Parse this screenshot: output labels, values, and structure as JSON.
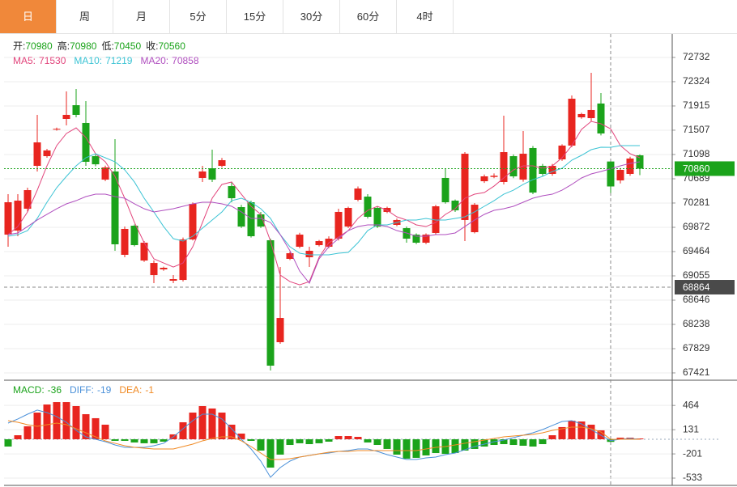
{
  "tabs": [
    "日",
    "周",
    "月",
    "5分",
    "15分",
    "30分",
    "60分",
    "4时"
  ],
  "active_tab": 0,
  "chart_data": [
    {
      "type": "candlestick",
      "info": [
        {
          "label": "开:",
          "value": 70980
        },
        {
          "label": "高:",
          "value": 70980
        },
        {
          "label": "低:",
          "value": 70450
        },
        {
          "label": "收:",
          "value": 70560
        }
      ],
      "up_color": "#e8251f",
      "down_color": "#1ba31b",
      "open": [
        69749,
        69817,
        70185,
        70907,
        71070,
        71520,
        71697,
        71928,
        71629,
        71070,
        70675,
        70812,
        69409,
        69899,
        69313,
        69068,
        69164,
        68973,
        68986,
        69668,
        70703,
        70866,
        70907,
        70566,
        70212,
        70294,
        70090,
        69654,
        67938,
        69341,
        69545,
        69368,
        69572,
        69545,
        69681,
        69885,
        70335,
        70389,
        70199,
        70131,
        69913,
        69858,
        69749,
        69613,
        69777,
        70703,
        70321,
        69995,
        69790,
        70648,
        70720,
        70635,
        71070,
        70675,
        71207,
        70907,
        70771,
        71016,
        71248,
        71724,
        71710,
        71956,
        70980,
        70662,
        70771,
        71084
      ],
      "high": [
        70430,
        70430,
        70539,
        71765,
        71193,
        71550,
        72160,
        72201,
        71997,
        71100,
        70910,
        71356,
        69885,
        69920,
        69640,
        69313,
        69210,
        69068,
        69700,
        70290,
        70907,
        71179,
        71040,
        70635,
        70250,
        70320,
        70130,
        69681,
        69204,
        69460,
        69780,
        69545,
        69660,
        69720,
        70185,
        70220,
        70560,
        70430,
        70220,
        70220,
        70020,
        69885,
        69770,
        69770,
        70250,
        70866,
        70340,
        71138,
        70280,
        70760,
        70780,
        71751,
        71100,
        71493,
        71240,
        70940,
        70940,
        71270,
        72092,
        71800,
        72473,
        72133,
        70980,
        70870,
        71060,
        71100
      ],
      "low": [
        69545,
        69722,
        70131,
        70812,
        71043,
        71500,
        71588,
        71724,
        70907,
        70900,
        70650,
        69477,
        69368,
        69550,
        69290,
        68932,
        69140,
        68932,
        68960,
        69650,
        70635,
        70635,
        70880,
        70294,
        69860,
        69700,
        69860,
        67461,
        67910,
        69320,
        69520,
        69204,
        69550,
        69520,
        69650,
        69860,
        70310,
        70020,
        69860,
        70110,
        69890,
        69613,
        69590,
        69590,
        69750,
        70270,
        70130,
        69640,
        69770,
        70620,
        70700,
        70594,
        70700,
        70640,
        70430,
        70740,
        70740,
        70990,
        71220,
        71700,
        71656,
        71420,
        70450,
        70610,
        70740,
        70750
      ],
      "close": [
        70294,
        70321,
        70498,
        71302,
        71166,
        71530,
        71765,
        71765,
        70975,
        70933,
        70880,
        69586,
        69845,
        69572,
        69613,
        69272,
        69191,
        69000,
        69668,
        70267,
        70812,
        70675,
        71002,
        70362,
        69885,
        69722,
        69885,
        67543,
        68346,
        69436,
        69749,
        69477,
        69640,
        69681,
        70131,
        70199,
        70525,
        70049,
        69885,
        70199,
        69995,
        69681,
        69613,
        69749,
        70226,
        70294,
        70158,
        71111,
        70253,
        70730,
        70740,
        71138,
        70730,
        71111,
        70457,
        70771,
        70907,
        71248,
        72037,
        71779,
        71847,
        71452,
        70560,
        70839,
        71030,
        70860
      ],
      "series": [
        {
          "name": "MA5",
          "color": "#e2457c",
          "legend": {
            "label": "MA5:",
            "value": 71530
          },
          "values": [
            69749,
            69885,
            70131,
            70498,
            70907,
            71248,
            71452,
            71547,
            71385,
            71111,
            70975,
            70730,
            70362,
            69954,
            69613,
            69341,
            69272,
            69204,
            69272,
            69545,
            69954,
            70362,
            70594,
            70635,
            70430,
            70226,
            70090,
            69640,
            69068,
            68959,
            68904,
            68959,
            69368,
            69613,
            69708,
            69817,
            70022,
            70158,
            70226,
            70158,
            70049,
            69995,
            69913,
            69885,
            69954,
            70090,
            70185,
            70362,
            70430,
            70457,
            70566,
            70703,
            70839,
            70907,
            70907,
            70866,
            70907,
            71043,
            71248,
            71520,
            71656,
            71615,
            71530,
            71248,
            71111,
            71043
          ]
        },
        {
          "name": "MA10",
          "color": "#3bc3d4",
          "legend": {
            "label": "MA10:",
            "value": 71219
          },
          "values": [
            69722,
            69749,
            69817,
            70022,
            70294,
            70539,
            70730,
            70907,
            71043,
            71111,
            71043,
            70975,
            70839,
            70635,
            70362,
            70131,
            69885,
            69681,
            69640,
            69722,
            69858,
            69995,
            70131,
            70321,
            70362,
            70294,
            70185,
            70022,
            69749,
            69545,
            69436,
            69409,
            69409,
            69409,
            69436,
            69450,
            69613,
            69817,
            69913,
            69913,
            69954,
            69995,
            69995,
            70022,
            69995,
            69995,
            70022,
            70049,
            70131,
            70226,
            70321,
            70430,
            70498,
            70594,
            70675,
            70730,
            70812,
            70866,
            71002,
            71084,
            71179,
            71220,
            71219,
            71248,
            71248,
            71248
          ]
        },
        {
          "name": "MA20",
          "color": "#b04fbf",
          "legend": {
            "label": "MA20:",
            "value": 70858
          },
          "values": [
            69749,
            69777,
            69885,
            69995,
            70090,
            70185,
            70267,
            70321,
            70389,
            70430,
            70430,
            70389,
            70362,
            70267,
            70185,
            70131,
            70158,
            70185,
            70226,
            70267,
            70294,
            70294,
            70267,
            70226,
            70131,
            70022,
            70022,
            69954,
            69749,
            69477,
            69136,
            68932,
            69341,
            69545,
            69681,
            69817,
            69885,
            69913,
            69913,
            69885,
            69817,
            69777,
            69722,
            69722,
            69749,
            69749,
            69777,
            69885,
            69995,
            70090,
            70158,
            70185,
            70226,
            70294,
            70362,
            70403,
            70430,
            70498,
            70594,
            70703,
            70771,
            70812,
            70858,
            70907,
            70948,
            70975
          ]
        }
      ],
      "ylim": [
        67298,
        73086
      ],
      "yticks": [
        72732,
        72324,
        71915,
        71507,
        71098,
        70689,
        70281,
        69872,
        69464,
        69055,
        68646,
        68238,
        67829,
        67421
      ],
      "last_price": 70860,
      "last_price_color": "#1ba31b",
      "crosshair_price": 68864,
      "hover_index": 62
    },
    {
      "type": "macd",
      "legend": [
        {
          "label": "MACD:",
          "value": -36,
          "color": "#1ba31b"
        },
        {
          "label": "DIFF:",
          "value": -19,
          "color": "#4a90d9"
        },
        {
          "label": "DEA:",
          "value": -1,
          "color": "#f08a24"
        }
      ],
      "values": [
        -100,
        55,
        178,
        366,
        477,
        510,
        510,
        455,
        344,
        289,
        200,
        -22,
        -22,
        -44,
        -55,
        -55,
        -33,
        67,
        233,
        366,
        455,
        422,
        366,
        200,
        78,
        -22,
        -155,
        -389,
        -211,
        -78,
        -55,
        -67,
        -55,
        -33,
        44,
        44,
        33,
        -44,
        -78,
        -133,
        -211,
        -266,
        -255,
        -222,
        -189,
        -200,
        -189,
        -155,
        -133,
        -100,
        -78,
        -67,
        -78,
        -89,
        -100,
        -67,
        55,
        167,
        255,
        244,
        200,
        122,
        -36,
        22,
        22,
        11
      ],
      "series": [
        {
          "name": "DIFF",
          "color": "#4a90d9",
          "values": [
            222,
            278,
            344,
            400,
            366,
            311,
            233,
            122,
            33,
            0,
            -33,
            -78,
            -111,
            -111,
            -111,
            -89,
            -55,
            33,
            144,
            255,
            344,
            344,
            278,
            144,
            0,
            -133,
            -300,
            -522,
            -389,
            -300,
            -244,
            -222,
            -200,
            -189,
            -167,
            -155,
            -133,
            -133,
            -167,
            -211,
            -244,
            -278,
            -278,
            -255,
            -244,
            -211,
            -189,
            -144,
            -100,
            -67,
            -33,
            -11,
            22,
            55,
            89,
            133,
            189,
            244,
            255,
            211,
            133,
            55,
            -19,
            0,
            11,
            0
          ]
        },
        {
          "name": "DEA",
          "color": "#f08a24",
          "values": [
            255,
            233,
            200,
            178,
            200,
            222,
            200,
            144,
            89,
            33,
            -22,
            -55,
            -89,
            -111,
            -122,
            -133,
            -133,
            -133,
            -100,
            -67,
            -22,
            11,
            33,
            33,
            -22,
            -100,
            -189,
            -278,
            -278,
            -266,
            -244,
            -222,
            -200,
            -178,
            -167,
            -167,
            -155,
            -155,
            -155,
            -155,
            -155,
            -155,
            -155,
            -133,
            -111,
            -100,
            -78,
            -55,
            -33,
            -11,
            11,
            33,
            44,
            55,
            67,
            89,
            122,
            144,
            167,
            167,
            144,
            100,
            -1,
            0,
            0,
            0
          ]
        }
      ],
      "up_color": "#e8251f",
      "down_color": "#1ba31b",
      "ylim": [
        -633,
        788
      ],
      "yticks": [
        464,
        131,
        -201,
        -533
      ]
    }
  ]
}
